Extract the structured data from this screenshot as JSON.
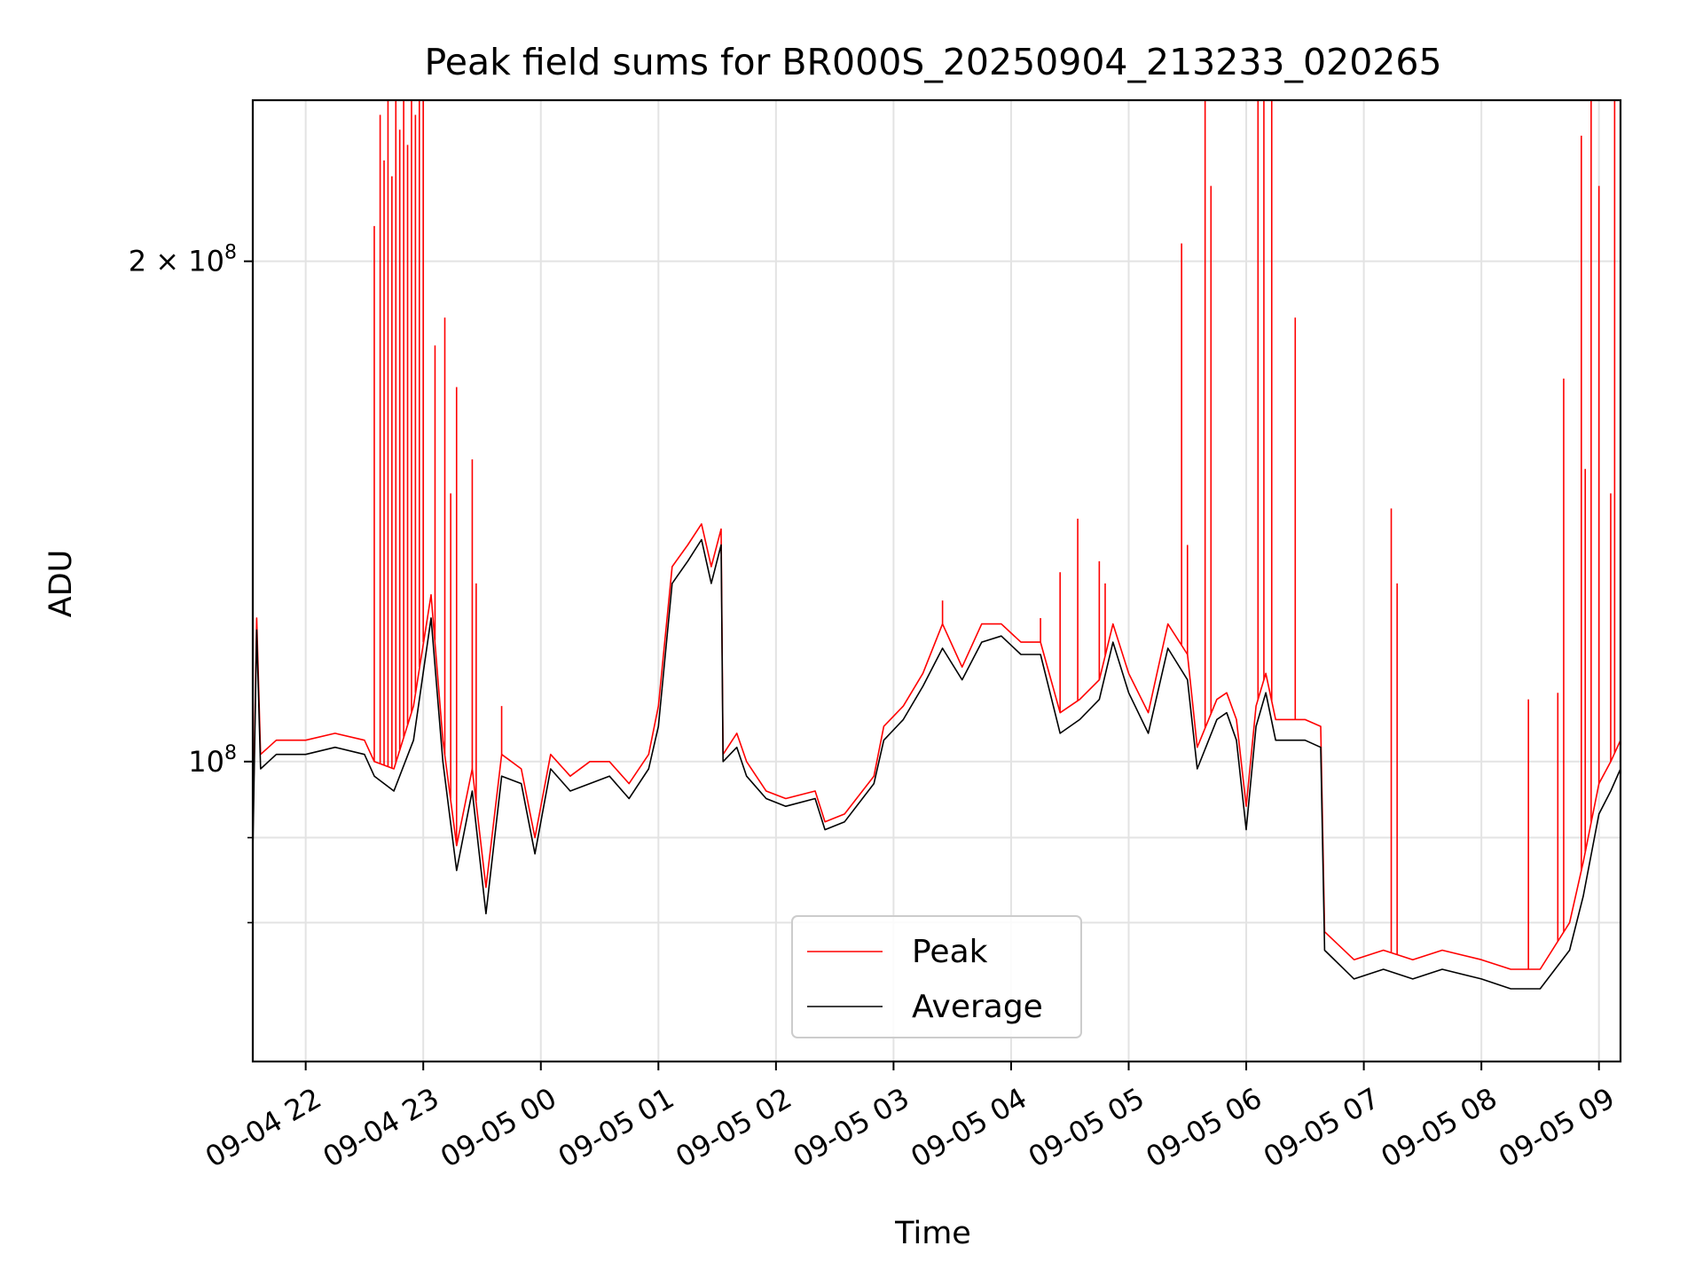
{
  "chart_data": {
    "type": "line",
    "title": "Peak field sums for BR000S_20250904_213233_020265",
    "xlabel": "Time",
    "ylabel": "ADU",
    "y_scale": "log",
    "ylim": [
      66000000,
      250000000
    ],
    "x_range": [
      "2025-09-04T21:33",
      "2025-09-05T09:11"
    ],
    "grid": true,
    "legend_position": "lower center",
    "x_ticks": [
      {
        "t": "2025-09-04T22:00",
        "label": "09-04 22"
      },
      {
        "t": "2025-09-04T23:00",
        "label": "09-04 23"
      },
      {
        "t": "2025-09-05T00:00",
        "label": "09-05 00"
      },
      {
        "t": "2025-09-05T01:00",
        "label": "09-05 01"
      },
      {
        "t": "2025-09-05T02:00",
        "label": "09-05 02"
      },
      {
        "t": "2025-09-05T03:00",
        "label": "09-05 03"
      },
      {
        "t": "2025-09-05T04:00",
        "label": "09-05 04"
      },
      {
        "t": "2025-09-05T05:00",
        "label": "09-05 05"
      },
      {
        "t": "2025-09-05T06:00",
        "label": "09-05 06"
      },
      {
        "t": "2025-09-05T07:00",
        "label": "09-05 07"
      },
      {
        "t": "2025-09-05T08:00",
        "label": "09-05 08"
      },
      {
        "t": "2025-09-05T09:00",
        "label": "09-05 09"
      }
    ],
    "y_ticks_major": [
      {
        "value": 100000000,
        "label": "10",
        "exp": "8",
        "prefix": ""
      },
      {
        "value": 200000000,
        "label": "10",
        "exp": "8",
        "prefix": "2 × "
      }
    ],
    "y_ticks_minor": [
      80000000,
      90000000
    ],
    "series": [
      {
        "name": "Average",
        "color": "#000000",
        "points": [
          [
            "2025-09-04T21:33",
            88000000
          ],
          [
            "2025-09-04T21:35",
            120000000
          ],
          [
            "2025-09-04T21:37",
            99000000
          ],
          [
            "2025-09-04T21:45",
            101000000
          ],
          [
            "2025-09-04T22:00",
            101000000
          ],
          [
            "2025-09-04T22:15",
            102000000
          ],
          [
            "2025-09-04T22:30",
            101000000
          ],
          [
            "2025-09-04T22:35",
            98000000
          ],
          [
            "2025-09-04T22:45",
            96000000
          ],
          [
            "2025-09-04T22:55",
            103000000
          ],
          [
            "2025-09-04T23:04",
            122000000
          ],
          [
            "2025-09-04T23:10",
            100000000
          ],
          [
            "2025-09-04T23:17",
            86000000
          ],
          [
            "2025-09-04T23:25",
            96000000
          ],
          [
            "2025-09-04T23:32",
            81000000
          ],
          [
            "2025-09-04T23:40",
            98000000
          ],
          [
            "2025-09-04T23:50",
            97000000
          ],
          [
            "2025-09-04T23:57",
            88000000
          ],
          [
            "2025-09-05T00:05",
            99000000
          ],
          [
            "2025-09-05T00:15",
            96000000
          ],
          [
            "2025-09-05T00:25",
            97000000
          ],
          [
            "2025-09-05T00:35",
            98000000
          ],
          [
            "2025-09-05T00:45",
            95000000
          ],
          [
            "2025-09-05T00:55",
            99000000
          ],
          [
            "2025-09-05T01:00",
            105000000
          ],
          [
            "2025-09-05T01:07",
            128000000
          ],
          [
            "2025-09-05T01:15",
            132000000
          ],
          [
            "2025-09-05T01:22",
            136000000
          ],
          [
            "2025-09-05T01:27",
            128000000
          ],
          [
            "2025-09-05T01:32",
            135000000
          ],
          [
            "2025-09-05T01:33",
            100000000
          ],
          [
            "2025-09-05T01:40",
            102000000
          ],
          [
            "2025-09-05T01:45",
            98000000
          ],
          [
            "2025-09-05T01:55",
            95000000
          ],
          [
            "2025-09-05T02:05",
            94000000
          ],
          [
            "2025-09-05T02:20",
            95000000
          ],
          [
            "2025-09-05T02:25",
            91000000
          ],
          [
            "2025-09-05T02:35",
            92000000
          ],
          [
            "2025-09-05T02:50",
            97000000
          ],
          [
            "2025-09-05T02:55",
            103000000
          ],
          [
            "2025-09-05T03:05",
            106000000
          ],
          [
            "2025-09-05T03:15",
            111000000
          ],
          [
            "2025-09-05T03:25",
            117000000
          ],
          [
            "2025-09-05T03:35",
            112000000
          ],
          [
            "2025-09-05T03:45",
            118000000
          ],
          [
            "2025-09-05T03:55",
            119000000
          ],
          [
            "2025-09-05T04:05",
            116000000
          ],
          [
            "2025-09-05T04:15",
            116000000
          ],
          [
            "2025-09-05T04:25",
            104000000
          ],
          [
            "2025-09-05T04:35",
            106000000
          ],
          [
            "2025-09-05T04:45",
            109000000
          ],
          [
            "2025-09-05T04:52",
            118000000
          ],
          [
            "2025-09-05T05:00",
            110000000
          ],
          [
            "2025-09-05T05:10",
            104000000
          ],
          [
            "2025-09-05T05:20",
            117000000
          ],
          [
            "2025-09-05T05:30",
            112000000
          ],
          [
            "2025-09-05T05:35",
            99000000
          ],
          [
            "2025-09-05T05:45",
            106000000
          ],
          [
            "2025-09-05T05:50",
            107000000
          ],
          [
            "2025-09-05T05:55",
            103000000
          ],
          [
            "2025-09-05T06:00",
            91000000
          ],
          [
            "2025-09-05T06:05",
            105000000
          ],
          [
            "2025-09-05T06:10",
            110000000
          ],
          [
            "2025-09-05T06:15",
            103000000
          ],
          [
            "2025-09-05T06:30",
            103000000
          ],
          [
            "2025-09-05T06:38",
            102000000
          ],
          [
            "2025-09-05T06:40",
            77000000
          ],
          [
            "2025-09-05T06:55",
            74000000
          ],
          [
            "2025-09-05T07:10",
            75000000
          ],
          [
            "2025-09-05T07:25",
            74000000
          ],
          [
            "2025-09-05T07:40",
            75000000
          ],
          [
            "2025-09-05T08:00",
            74000000
          ],
          [
            "2025-09-05T08:15",
            73000000
          ],
          [
            "2025-09-05T08:30",
            73000000
          ],
          [
            "2025-09-05T08:45",
            77000000
          ],
          [
            "2025-09-05T08:52",
            83000000
          ],
          [
            "2025-09-05T09:00",
            93000000
          ],
          [
            "2025-09-05T09:06",
            96000000
          ],
          [
            "2025-09-05T09:11",
            99000000
          ]
        ]
      },
      {
        "name": "Peak",
        "color": "#ff0000",
        "points": [
          [
            "2025-09-04T21:33",
            90000000
          ],
          [
            "2025-09-04T21:35",
            122000000
          ],
          [
            "2025-09-04T21:37",
            101000000
          ],
          [
            "2025-09-04T21:45",
            103000000
          ],
          [
            "2025-09-04T22:00",
            103000000
          ],
          [
            "2025-09-04T22:15",
            104000000
          ],
          [
            "2025-09-04T22:30",
            103000000
          ],
          [
            "2025-09-04T22:35",
            100000000
          ],
          [
            "2025-09-04T22:45",
            99000000
          ],
          [
            "2025-09-04T22:55",
            108000000
          ],
          [
            "2025-09-04T23:04",
            126000000
          ],
          [
            "2025-09-04T23:10",
            103000000
          ],
          [
            "2025-09-04T23:17",
            89000000
          ],
          [
            "2025-09-04T23:25",
            99000000
          ],
          [
            "2025-09-04T23:32",
            84000000
          ],
          [
            "2025-09-04T23:40",
            101000000
          ],
          [
            "2025-09-04T23:50",
            99000000
          ],
          [
            "2025-09-04T23:57",
            90000000
          ],
          [
            "2025-09-05T00:05",
            101000000
          ],
          [
            "2025-09-05T00:15",
            98000000
          ],
          [
            "2025-09-05T00:25",
            100000000
          ],
          [
            "2025-09-05T00:35",
            100000000
          ],
          [
            "2025-09-05T00:45",
            97000000
          ],
          [
            "2025-09-05T00:55",
            101000000
          ],
          [
            "2025-09-05T01:00",
            108000000
          ],
          [
            "2025-09-05T01:07",
            131000000
          ],
          [
            "2025-09-05T01:15",
            135000000
          ],
          [
            "2025-09-05T01:22",
            139000000
          ],
          [
            "2025-09-05T01:27",
            131000000
          ],
          [
            "2025-09-05T01:32",
            138000000
          ],
          [
            "2025-09-05T01:33",
            101000000
          ],
          [
            "2025-09-05T01:40",
            104000000
          ],
          [
            "2025-09-05T01:45",
            100000000
          ],
          [
            "2025-09-05T01:55",
            96000000
          ],
          [
            "2025-09-05T02:05",
            95000000
          ],
          [
            "2025-09-05T02:20",
            96000000
          ],
          [
            "2025-09-05T02:25",
            92000000
          ],
          [
            "2025-09-05T02:35",
            93000000
          ],
          [
            "2025-09-05T02:50",
            98000000
          ],
          [
            "2025-09-05T02:55",
            105000000
          ],
          [
            "2025-09-05T03:05",
            108000000
          ],
          [
            "2025-09-05T03:15",
            113000000
          ],
          [
            "2025-09-05T03:25",
            121000000
          ],
          [
            "2025-09-05T03:35",
            114000000
          ],
          [
            "2025-09-05T03:45",
            121000000
          ],
          [
            "2025-09-05T03:55",
            121000000
          ],
          [
            "2025-09-05T04:05",
            118000000
          ],
          [
            "2025-09-05T04:15",
            118000000
          ],
          [
            "2025-09-05T04:25",
            107000000
          ],
          [
            "2025-09-05T04:35",
            109000000
          ],
          [
            "2025-09-05T04:45",
            112000000
          ],
          [
            "2025-09-05T04:52",
            121000000
          ],
          [
            "2025-09-05T05:00",
            113000000
          ],
          [
            "2025-09-05T05:10",
            107000000
          ],
          [
            "2025-09-05T05:20",
            121000000
          ],
          [
            "2025-09-05T05:30",
            116000000
          ],
          [
            "2025-09-05T05:35",
            102000000
          ],
          [
            "2025-09-05T05:45",
            109000000
          ],
          [
            "2025-09-05T05:50",
            110000000
          ],
          [
            "2025-09-05T05:55",
            106000000
          ],
          [
            "2025-09-05T06:00",
            94000000
          ],
          [
            "2025-09-05T06:05",
            108000000
          ],
          [
            "2025-09-05T06:10",
            113000000
          ],
          [
            "2025-09-05T06:15",
            106000000
          ],
          [
            "2025-09-05T06:30",
            106000000
          ],
          [
            "2025-09-05T06:38",
            105000000
          ],
          [
            "2025-09-05T06:40",
            79000000
          ],
          [
            "2025-09-05T06:55",
            76000000
          ],
          [
            "2025-09-05T07:10",
            77000000
          ],
          [
            "2025-09-05T07:25",
            76000000
          ],
          [
            "2025-09-05T07:40",
            77000000
          ],
          [
            "2025-09-05T08:00",
            76000000
          ],
          [
            "2025-09-05T08:15",
            75000000
          ],
          [
            "2025-09-05T08:30",
            75000000
          ],
          [
            "2025-09-05T08:45",
            80000000
          ],
          [
            "2025-09-05T08:52",
            87000000
          ],
          [
            "2025-09-05T09:00",
            97000000
          ],
          [
            "2025-09-05T09:06",
            100000000
          ],
          [
            "2025-09-05T09:11",
            103000000
          ]
        ],
        "spikes": [
          [
            "2025-09-04T22:35",
            210000000
          ],
          [
            "2025-09-04T22:38",
            245000000
          ],
          [
            "2025-09-04T22:40",
            230000000
          ],
          [
            "2025-09-04T22:42",
            250000000
          ],
          [
            "2025-09-04T22:44",
            225000000
          ],
          [
            "2025-09-04T22:46",
            250000000
          ],
          [
            "2025-09-04T22:48",
            240000000
          ],
          [
            "2025-09-04T22:50",
            250000000
          ],
          [
            "2025-09-04T22:52",
            235000000
          ],
          [
            "2025-09-04T22:54",
            250000000
          ],
          [
            "2025-09-04T22:56",
            245000000
          ],
          [
            "2025-09-04T22:58",
            250000000
          ],
          [
            "2025-09-04T23:00",
            250000000
          ],
          [
            "2025-09-04T23:06",
            178000000
          ],
          [
            "2025-09-04T23:11",
            185000000
          ],
          [
            "2025-09-04T23:14",
            145000000
          ],
          [
            "2025-09-04T23:17",
            168000000
          ],
          [
            "2025-09-04T23:25",
            152000000
          ],
          [
            "2025-09-04T23:27",
            128000000
          ],
          [
            "2025-09-04T23:40",
            108000000
          ],
          [
            "2025-09-05T03:25",
            125000000
          ],
          [
            "2025-09-05T04:15",
            122000000
          ],
          [
            "2025-09-05T04:25",
            130000000
          ],
          [
            "2025-09-05T04:34",
            140000000
          ],
          [
            "2025-09-05T04:45",
            132000000
          ],
          [
            "2025-09-05T04:48",
            128000000
          ],
          [
            "2025-09-05T05:27",
            205000000
          ],
          [
            "2025-09-05T05:30",
            135000000
          ],
          [
            "2025-09-05T05:39",
            250000000
          ],
          [
            "2025-09-05T05:42",
            222000000
          ],
          [
            "2025-09-05T06:06",
            250000000
          ],
          [
            "2025-09-05T06:09",
            250000000
          ],
          [
            "2025-09-05T06:13",
            250000000
          ],
          [
            "2025-09-05T06:25",
            185000000
          ],
          [
            "2025-09-05T07:14",
            142000000
          ],
          [
            "2025-09-05T07:17",
            128000000
          ],
          [
            "2025-09-05T08:24",
            109000000
          ],
          [
            "2025-09-05T08:39",
            110000000
          ],
          [
            "2025-09-05T08:42",
            170000000
          ],
          [
            "2025-09-05T08:51",
            238000000
          ],
          [
            "2025-09-05T08:53",
            150000000
          ],
          [
            "2025-09-05T08:56",
            250000000
          ],
          [
            "2025-09-05T09:00",
            222000000
          ],
          [
            "2025-09-05T09:06",
            145000000
          ],
          [
            "2025-09-05T09:08",
            250000000
          ]
        ]
      }
    ]
  }
}
